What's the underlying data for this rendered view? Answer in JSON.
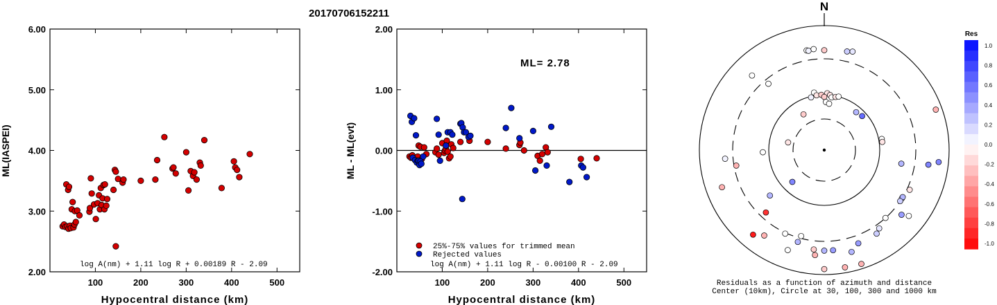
{
  "event_id": "20170706152211",
  "colors": {
    "accepted": "#d40000",
    "rejected": "#0018c8"
  },
  "chart_data": [
    {
      "type": "scatter",
      "title": "",
      "xlabel": "Hypocentral distance (km)",
      "ylabel": "ML(IASPEI)",
      "xlim": [
        0,
        550
      ],
      "ylim": [
        2.0,
        6.0
      ],
      "x_ticks": [
        "100",
        "200",
        "300",
        "400",
        "500"
      ],
      "y_ticks": [
        "2.00",
        "3.00",
        "4.00",
        "5.00",
        "6.00"
      ],
      "formula": "log A(nm) + 1.11 log R + 0.00189 R - 2.09",
      "grid": false,
      "series": [
        {
          "color": "#d40000",
          "points": [
            [
              28,
              2.75
            ],
            [
              31,
              2.78
            ],
            [
              34,
              2.74
            ],
            [
              36,
              3.44
            ],
            [
              38,
              2.75
            ],
            [
              40,
              3.35
            ],
            [
              41,
              2.71
            ],
            [
              42,
              3.4
            ],
            [
              44,
              2.76
            ],
            [
              46,
              2.72
            ],
            [
              48,
              3.03
            ],
            [
              50,
              3.15
            ],
            [
              52,
              2.73
            ],
            [
              54,
              2.78
            ],
            [
              55,
              3.0
            ],
            [
              57,
              2.82
            ],
            [
              60,
              3.01
            ],
            [
              65,
              2.93
            ],
            [
              87,
              2.99
            ],
            [
              88,
              3.05
            ],
            [
              90,
              3.54
            ],
            [
              92,
              3.29
            ],
            [
              97,
              3.11
            ],
            [
              101,
              2.87
            ],
            [
              105,
              3.13
            ],
            [
              108,
              3.26
            ],
            [
              110,
              3.03
            ],
            [
              112,
              3.38
            ],
            [
              114,
              3.1
            ],
            [
              116,
              3.21
            ],
            [
              118,
              3.43
            ],
            [
              120,
              3.03
            ],
            [
              121,
              3.44
            ],
            [
              124,
              3.09
            ],
            [
              126,
              3.2
            ],
            [
              140,
              3.35
            ],
            [
              143,
              3.68
            ],
            [
              145,
              3.65
            ],
            [
              150,
              3.53
            ],
            [
              160,
              3.47
            ],
            [
              162,
              3.52
            ],
            [
              200,
              3.5
            ],
            [
              232,
              3.52
            ],
            [
              236,
              3.84
            ],
            [
              252,
              4.22
            ],
            [
              270,
              3.7
            ],
            [
              272,
              3.72
            ],
            [
              277,
              3.62
            ],
            [
              300,
              3.97
            ],
            [
              305,
              3.34
            ],
            [
              310,
              3.66
            ],
            [
              315,
              3.58
            ],
            [
              318,
              3.64
            ],
            [
              323,
              3.52
            ],
            [
              330,
              3.8
            ],
            [
              332,
              3.75
            ],
            [
              340,
              4.17
            ],
            [
              378,
              3.38
            ],
            [
              405,
              3.82
            ],
            [
              408,
              3.72
            ],
            [
              412,
              3.68
            ],
            [
              417,
              3.56
            ],
            [
              440,
              3.94
            ],
            [
              145,
              2.42
            ]
          ]
        }
      ]
    },
    {
      "type": "scatter",
      "title": "",
      "xlabel": "Hypocentral distance (km)",
      "ylabel": "ML - ML(evt)",
      "xlim": [
        0,
        550
      ],
      "ylim": [
        -2.0,
        2.0
      ],
      "x_ticks": [
        "100",
        "200",
        "300",
        "400",
        "500"
      ],
      "y_ticks": [
        "-2.00",
        "-1.00",
        "0.00",
        "1.00",
        "2.00"
      ],
      "annotation": "ML= 2.78",
      "formula": "log A(nm) + 1.11 log R - 0.00100 R - 2.09",
      "reference_line": 0.0,
      "legend": [
        "25%-75% values for trimmed mean",
        "Rejected values"
      ],
      "legend_position": "bottom-left",
      "series": [
        {
          "name": "25%-75% values for trimmed mean",
          "color": "#d40000",
          "points": [
            [
              28,
              -0.1
            ],
            [
              31,
              -0.12
            ],
            [
              34,
              -0.08
            ],
            [
              38,
              -0.13
            ],
            [
              42,
              -0.15
            ],
            [
              46,
              -0.1
            ],
            [
              48,
              0.08
            ],
            [
              52,
              0.06
            ],
            [
              55,
              -0.14
            ],
            [
              60,
              0.05
            ],
            [
              65,
              -0.06
            ],
            [
              85,
              -0.03
            ],
            [
              88,
              0.03
            ],
            [
              92,
              -0.07
            ],
            [
              100,
              0.12
            ],
            [
              104,
              -0.04
            ],
            [
              106,
              0.0
            ],
            [
              108,
              0.03
            ],
            [
              110,
              0.16
            ],
            [
              112,
              -0.02
            ],
            [
              115,
              -0.13
            ],
            [
              118,
              -0.1
            ],
            [
              120,
              0.1
            ],
            [
              124,
              0.04
            ],
            [
              140,
              0.14
            ],
            [
              160,
              0.16
            ],
            [
              200,
              0.14
            ],
            [
              240,
              0.03
            ],
            [
              270,
              0.09
            ],
            [
              272,
              0.13
            ],
            [
              280,
              0.0
            ],
            [
              310,
              -0.09
            ],
            [
              315,
              -0.17
            ],
            [
              320,
              -0.06
            ],
            [
              328,
              0.05
            ],
            [
              332,
              -0.03
            ],
            [
              405,
              -0.14
            ],
            [
              440,
              -0.13
            ]
          ]
        },
        {
          "name": "Rejected values",
          "color": "#0018c8",
          "points": [
            [
              30,
              0.57
            ],
            [
              33,
              0.47
            ],
            [
              35,
              -0.12
            ],
            [
              38,
              0.53
            ],
            [
              40,
              -0.16
            ],
            [
              42,
              0.25
            ],
            [
              44,
              -0.2
            ],
            [
              46,
              -0.17
            ],
            [
              48,
              -0.17
            ],
            [
              50,
              -0.24
            ],
            [
              52,
              -0.18
            ],
            [
              54,
              -0.22
            ],
            [
              58,
              -0.1
            ],
            [
              88,
              0.52
            ],
            [
              92,
              0.26
            ],
            [
              95,
              -0.17
            ],
            [
              108,
              0.08
            ],
            [
              112,
              0.3
            ],
            [
              118,
              0.3
            ],
            [
              122,
              0.26
            ],
            [
              140,
              0.44
            ],
            [
              142,
              0.45
            ],
            [
              145,
              0.38
            ],
            [
              148,
              0.3
            ],
            [
              152,
              0.3
            ],
            [
              158,
              0.22
            ],
            [
              162,
              0.24
            ],
            [
              144,
              -0.8
            ],
            [
              240,
              0.37
            ],
            [
              252,
              0.7
            ],
            [
              270,
              0.2
            ],
            [
              300,
              0.32
            ],
            [
              305,
              -0.33
            ],
            [
              330,
              -0.25
            ],
            [
              340,
              0.39
            ],
            [
              380,
              -0.52
            ],
            [
              406,
              -0.25
            ],
            [
              410,
              -0.28
            ],
            [
              418,
              -0.44
            ]
          ]
        }
      ]
    },
    {
      "type": "scatter",
      "subtype": "polar-residuals",
      "title": "",
      "north_label": "N",
      "caption": [
        "Residuals as a function of azimuth and distance",
        "Center (10km), Circle at 30, 100, 300 and 1000 km"
      ],
      "ring_distances_km": [
        10,
        30,
        100,
        300,
        1000
      ],
      "colorbar_title": "Res",
      "colorbar_ticks": [
        "1.0",
        "0.8",
        "0.6",
        "0.4",
        "0.2",
        "0.0",
        "-0.2",
        "-0.4",
        "-0.6",
        "-0.8",
        "-1.0"
      ],
      "points": [
        {
          "az": 0,
          "dist": 410,
          "res": -0.2
        },
        {
          "az": 350,
          "dist": 430,
          "res": 0.0
        },
        {
          "az": 351,
          "dist": 420,
          "res": 0.05
        },
        {
          "az": 354,
          "dist": 435,
          "res": 0.0
        },
        {
          "az": 16,
          "dist": 450,
          "res": 0.1
        },
        {
          "az": 13,
          "dist": 430,
          "res": 0.2
        },
        {
          "az": 316,
          "dist": 470,
          "res": 0.0
        },
        {
          "az": 320,
          "dist": 260,
          "res": 0.0
        },
        {
          "az": 70,
          "dist": 800,
          "res": -0.3
        },
        {
          "az": 350,
          "dist": 110,
          "res": 0.0
        },
        {
          "az": 352,
          "dist": 100,
          "res": -0.1
        },
        {
          "az": 346,
          "dist": 95,
          "res": 0.05
        },
        {
          "az": 357,
          "dist": 100,
          "res": -0.2
        },
        {
          "az": 3,
          "dist": 105,
          "res": -0.1
        },
        {
          "az": 6,
          "dist": 100,
          "res": -0.1
        },
        {
          "az": 0,
          "dist": 90,
          "res": -0.2
        },
        {
          "az": 8,
          "dist": 90,
          "res": 0.0
        },
        {
          "az": 12,
          "dist": 95,
          "res": -0.1
        },
        {
          "az": 15,
          "dist": 100,
          "res": 0.0
        },
        {
          "az": 2,
          "dist": 70,
          "res": 0.0
        },
        {
          "az": 6,
          "dist": 65,
          "res": 0.0
        },
        {
          "az": 40,
          "dist": 75,
          "res": 0.3
        },
        {
          "az": 48,
          "dist": 80,
          "res": 0.6
        },
        {
          "az": 330,
          "dist": 50,
          "res": -0.2
        },
        {
          "az": 282,
          "dist": 40,
          "res": -0.1
        },
        {
          "az": 79,
          "dist": 110,
          "res": 0.0
        },
        {
          "az": 82,
          "dist": 110,
          "res": -0.1
        },
        {
          "az": 265,
          "dist": 400,
          "res": 0.05
        },
        {
          "az": 268,
          "dist": 120,
          "res": 0.0
        },
        {
          "az": 100,
          "dist": 200,
          "res": 0.3
        },
        {
          "az": 98,
          "dist": 490,
          "res": 0.5
        },
        {
          "az": 96,
          "dist": 700,
          "res": 0.5
        },
        {
          "az": 260,
          "dist": 280,
          "res": -0.3
        },
        {
          "az": 215,
          "dist": 480,
          "res": -0.3
        },
        {
          "az": 225,
          "dist": 60,
          "res": 0.5
        },
        {
          "az": 130,
          "dist": 420,
          "res": 0.4
        },
        {
          "az": 115,
          "dist": 330,
          "res": -0.1
        },
        {
          "az": 122,
          "dist": 300,
          "res": 0.1
        },
        {
          "az": 121,
          "dist": 300,
          "res": 0.3
        },
        {
          "az": 124,
          "dist": 300,
          "res": 0.2
        },
        {
          "az": 138,
          "dist": 300,
          "res": 0.0
        },
        {
          "az": 145,
          "dist": 350,
          "res": 0.1
        },
        {
          "az": 128,
          "dist": 530,
          "res": 0.0
        },
        {
          "az": 148,
          "dist": 390,
          "res": 0.2
        },
        {
          "az": 165,
          "dist": 500,
          "res": 0.3
        },
        {
          "az": 160,
          "dist": 400,
          "res": 0.4
        },
        {
          "az": 175,
          "dist": 420,
          "res": 0.4
        },
        {
          "az": 180,
          "dist": 420,
          "res": 0.3
        },
        {
          "az": 170,
          "dist": 820,
          "res": -0.3
        },
        {
          "az": 180,
          "dist": 820,
          "res": -0.2
        },
        {
          "az": 186,
          "dist": 410,
          "res": -0.2
        },
        {
          "az": 185,
          "dist": 500,
          "res": -0.3
        },
        {
          "az": 195,
          "dist": 280,
          "res": 0.0
        },
        {
          "az": 196,
          "dist": 350,
          "res": 0.3
        },
        {
          "az": 205,
          "dist": 310,
          "res": 0.0
        },
        {
          "az": 200,
          "dist": 520,
          "res": 0.0
        },
        {
          "az": 223,
          "dist": 250,
          "res": -0.8
        },
        {
          "az": 220,
          "dist": 600,
          "res": -0.9
        },
        {
          "az": 230,
          "dist": 160,
          "res": 0.3
        },
        {
          "az": 250,
          "dist": 560,
          "res": -0.3
        },
        {
          "az": 162,
          "dist": 840,
          "res": -0.3
        }
      ]
    }
  ]
}
